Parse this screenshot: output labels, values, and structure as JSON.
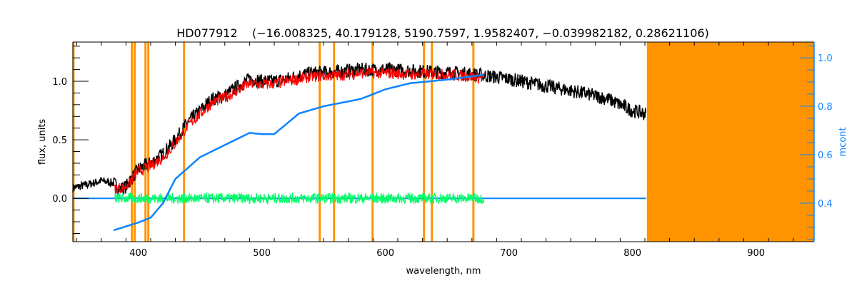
{
  "chart_data": {
    "type": "line",
    "title": "HD077912    (−16.008325, 40.179128, 5190.7597, 1.9582407, −0.039982182, 0.28621106)",
    "xlabel": "wavelength, nm",
    "ylabel": "flux, units",
    "y2label": "mcont",
    "xlim": [
      347,
      947
    ],
    "ylim": [
      -0.37,
      1.335
    ],
    "y2lim": [
      0.241,
      1.065
    ],
    "xticks": [
      "400",
      "500",
      "600",
      "700",
      "800",
      "900"
    ],
    "yticks": [
      "0.0",
      "0.5",
      "1.0"
    ],
    "y2ticks": [
      "0.4",
      "0.6",
      "0.8",
      "1.0"
    ],
    "grid": false,
    "colors": {
      "observed": "#000000",
      "model": "#ff0000",
      "residual": "#00ff66",
      "mcont": "#0a84ff",
      "mask": "#ff9400"
    },
    "masked_lines": [
      347.5,
      394.8,
      397.1,
      405.8,
      408.1,
      437.0,
      546.8,
      558.4,
      589.6,
      631.2,
      637.6,
      671.2
    ],
    "masked_region": [
      811.6,
      947
    ],
    "series": [
      {
        "key": "observed",
        "axis": "left",
        "x": [
          347,
          360,
          370,
          380,
          385,
          390,
          400,
          410,
          420,
          430,
          440,
          450,
          460,
          470,
          480,
          490,
          500,
          510,
          520,
          530,
          540,
          560,
          580,
          600,
          620,
          640,
          660,
          680,
          700,
          720,
          740,
          760,
          780,
          800,
          811
        ],
        "y": [
          0.09,
          0.12,
          0.15,
          0.13,
          0.08,
          0.1,
          0.25,
          0.3,
          0.38,
          0.5,
          0.65,
          0.75,
          0.85,
          0.88,
          0.95,
          1.02,
          1.0,
          1.0,
          1.02,
          1.05,
          1.07,
          1.08,
          1.1,
          1.1,
          1.09,
          1.08,
          1.07,
          1.05,
          1.02,
          0.98,
          0.94,
          0.9,
          0.85,
          0.75,
          0.72
        ]
      },
      {
        "key": "model",
        "axis": "left",
        "x": [
          381,
          390,
          400,
          410,
          420,
          430,
          440,
          450,
          460,
          470,
          480,
          490,
          500,
          510,
          520,
          530,
          540,
          560,
          580,
          600,
          620,
          640,
          660,
          680
        ],
        "y": [
          0.08,
          0.1,
          0.23,
          0.28,
          0.35,
          0.47,
          0.62,
          0.72,
          0.82,
          0.86,
          0.92,
          0.98,
          0.97,
          0.98,
          1.0,
          1.02,
          1.04,
          1.05,
          1.07,
          1.07,
          1.06,
          1.06,
          1.05,
          1.03
        ]
      },
      {
        "key": "residual",
        "axis": "left",
        "x": [
          381,
          680
        ],
        "y": [
          0.0,
          0.0
        ]
      },
      {
        "key": "mcont",
        "axis": "right",
        "x": [
          380,
          400,
          410,
          420,
          430,
          450,
          490,
          500,
          510,
          530,
          550,
          580,
          600,
          620,
          650,
          680
        ],
        "y": [
          0.288,
          0.32,
          0.34,
          0.4,
          0.5,
          0.59,
          0.69,
          0.685,
          0.685,
          0.77,
          0.8,
          0.83,
          0.87,
          0.895,
          0.91,
          0.93
        ]
      },
      {
        "key": "baseline",
        "axis": "left",
        "x": [
          347,
          381,
          680,
          811
        ],
        "y": [
          0.0,
          0.0,
          0.0,
          0.0
        ]
      }
    ]
  }
}
